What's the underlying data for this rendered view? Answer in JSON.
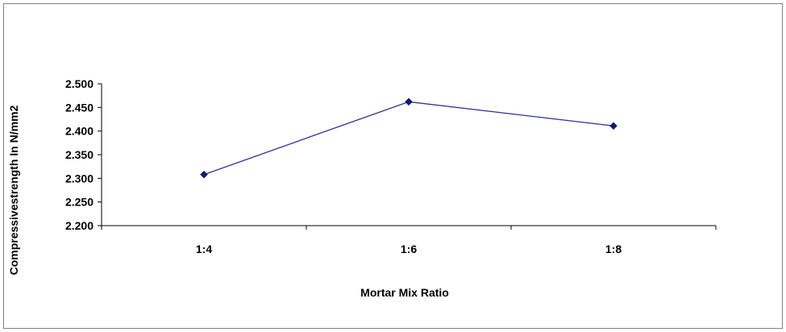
{
  "chart_data": {
    "type": "line",
    "title": "",
    "xlabel": "Mortar Mix Ratio",
    "ylabel": "Compressivestrength In N/mm2",
    "categories": [
      "1:4",
      "1:6",
      "1:8"
    ],
    "series": [
      {
        "values": [
          2.308,
          2.462,
          2.411
        ],
        "color": "#2e3192",
        "marker": "diamond",
        "marker_color": "#0f1a6b"
      }
    ],
    "ylim": [
      2.2,
      2.5
    ],
    "yticks": [
      2.2,
      2.25,
      2.3,
      2.35,
      2.4,
      2.45,
      2.5
    ],
    "ytick_labels": [
      "2.200",
      "2.250",
      "2.300",
      "2.350",
      "2.400",
      "2.450",
      "2.500"
    ],
    "grid": false,
    "legend": "none"
  }
}
